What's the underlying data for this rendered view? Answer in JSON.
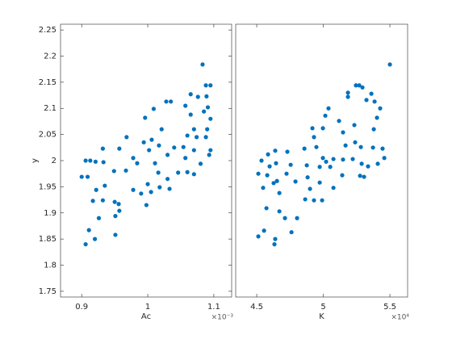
{
  "chart_data": [
    {
      "type": "scatter",
      "xlabel": "Ac",
      "ylabel": "y",
      "x_multiplier": "×10⁻³",
      "color": "#0072bd",
      "xlim": [
        0.868,
        1.127
      ],
      "ylim": [
        1.739,
        2.261
      ],
      "xticks": [
        0.9,
        1,
        1.1
      ],
      "yticks": [
        1.75,
        1.8,
        1.85,
        1.9,
        1.95,
        2,
        2.05,
        2.1,
        2.15,
        2.2,
        2.25
      ],
      "x": [
        1.083,
        1.088,
        1.095,
        1.089,
        1.091,
        1.095,
        1.09,
        1.088,
        1.095,
        1.093,
        1.085,
        1.076,
        1.065,
        1.057,
        1.065,
        1.07,
        1.074,
        1.06,
        1.07,
        1.054,
        1.04,
        1.03,
        1.057,
        1.08,
        1.07,
        1.06,
        1.046,
        1.03,
        1.033,
        1.018,
        1.0,
        1.016,
        1.011,
        1.017,
        1.021,
        1.028,
        1.035,
        1.009,
        0.996,
        1.006,
        1.002,
        0.984,
        0.978,
        0.968,
        0.994,
        0.99,
        1.005,
        0.998,
        0.978,
        0.967,
        0.957,
        0.949,
        0.933,
        0.932,
        0.921,
        0.922,
        0.932,
        0.926,
        0.913,
        0.906,
        0.9,
        0.909,
        0.917,
        0.911,
        0.92,
        0.906,
        0.956,
        0.951,
        0.951,
        0.95,
        0.935,
        0.957
      ],
      "values": [
        2.184,
        2.144,
        2.144,
        2.123,
        2.102,
        2.08,
        2.06,
        2.045,
        2.02,
        2.011,
        2.094,
        2.122,
        2.127,
        2.105,
        2.088,
        2.06,
        2.045,
        2.048,
        2.02,
        2.026,
        2.025,
        2.011,
        2.005,
        1.994,
        1.974,
        1.978,
        1.977,
        1.965,
        1.946,
        1.949,
        1.955,
        1.977,
        1.995,
        2.029,
        2.06,
        2.113,
        2.113,
        2.099,
        2.082,
        2.04,
        2.02,
        1.995,
        2.005,
        2.045,
        2.035,
        1.937,
        1.94,
        1.915,
        1.944,
        1.981,
        2.023,
        1.98,
        1.997,
        2.023,
        1.998,
        1.944,
        1.924,
        1.89,
        2.0,
        2.0,
        1.969,
        1.969,
        1.923,
        1.867,
        1.85,
        1.84,
        1.917,
        1.894,
        1.858,
        1.921,
        1.952,
        1.904
      ]
    },
    {
      "type": "scatter",
      "xlabel": "K",
      "x_multiplier": "×10⁴",
      "color": "#0072bd",
      "xlim": [
        4.342,
        5.633
      ],
      "ylim": [
        1.739,
        2.261
      ],
      "xticks": [
        4.5,
        5,
        5.5
      ],
      "x": [
        5.5,
        5.245,
        5.27,
        5.294,
        5.361,
        5.185,
        5.185,
        5.324,
        5.385,
        5.427,
        5.039,
        5.015,
        5.118,
        5.233,
        5.403,
        4.997,
        4.918,
        5.148,
        5.379,
        4.93,
        5.239,
        5.373,
        5.445,
        5.458,
        5.282,
        5.167,
        4.948,
        4.858,
        4.73,
        4.639,
        4.585,
        4.997,
        5.021,
        4.973,
        5.052,
        5.148,
        5.221,
        5.288,
        5.336,
        5.409,
        4.876,
        4.755,
        4.645,
        4.597,
        4.536,
        4.512,
        4.579,
        4.627,
        4.724,
        4.791,
        4.882,
        4.973,
        5.076,
        5.142,
        5.276,
        5.306,
        4.9,
        4.93,
        4.991,
        4.864,
        4.548,
        4.573,
        4.67,
        4.712,
        4.803,
        4.761,
        4.555,
        4.512,
        4.639,
        4.633,
        4.67,
        4.652,
        5.076
      ],
      "values": [
        2.184,
        2.144,
        2.144,
        2.14,
        2.128,
        2.122,
        2.13,
        2.116,
        2.113,
        2.1,
        2.1,
        2.086,
        2.076,
        2.068,
        2.082,
        2.062,
        2.062,
        2.054,
        2.06,
        2.045,
        2.035,
        2.025,
        2.023,
        2.005,
        2.026,
        2.029,
        2.026,
        2.023,
        2.017,
        2.019,
        2.012,
        2.005,
        1.998,
        1.988,
        1.988,
        2.002,
        2.003,
        1.994,
        1.989,
        1.994,
        1.991,
        1.992,
        1.995,
        1.989,
        2.0,
        1.975,
        1.972,
        1.957,
        1.975,
        1.96,
        1.968,
        1.958,
        1.948,
        1.972,
        1.971,
        1.969,
        1.946,
        1.924,
        1.924,
        1.926,
        1.948,
        1.909,
        1.903,
        1.89,
        1.89,
        1.863,
        1.866,
        1.855,
        1.85,
        1.84,
        1.938,
        1.961,
        2.003
      ]
    }
  ]
}
